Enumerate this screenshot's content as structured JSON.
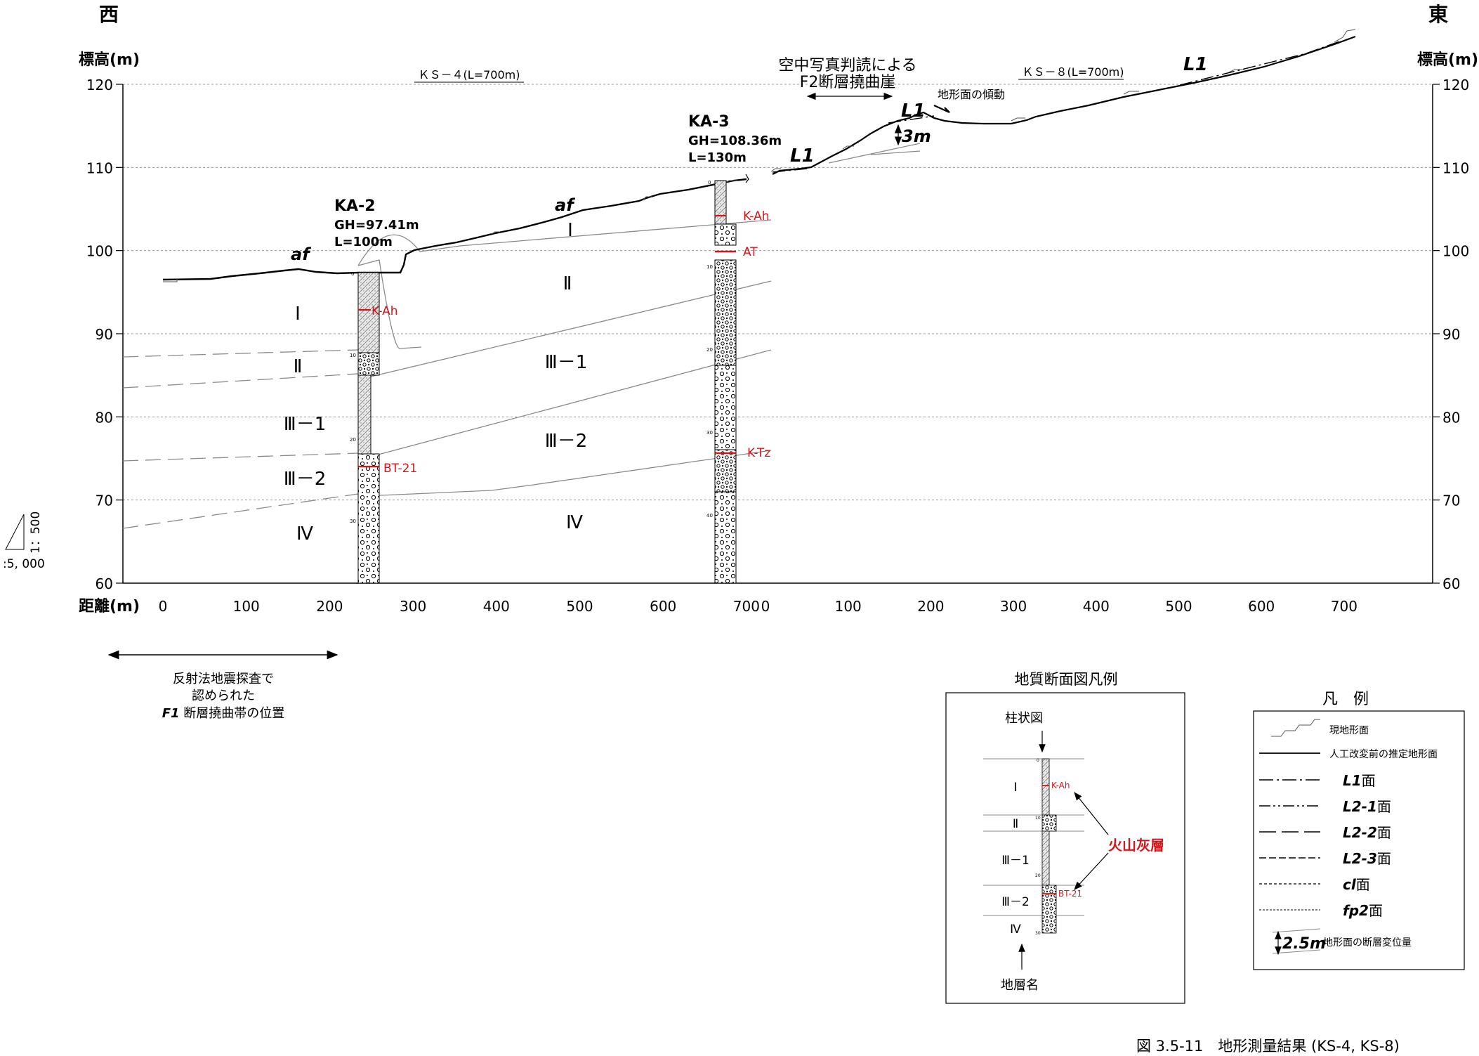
{
  "header": {
    "west": "西",
    "east": "東"
  },
  "axis": {
    "ylabel": "標高(m)",
    "xlabel": "距離(m)",
    "y_ticks": [
      120,
      110,
      100,
      90,
      80,
      70,
      60
    ],
    "x_ticks_ks4": [
      0,
      100,
      200,
      300,
      400,
      500,
      600,
      700
    ],
    "x_ticks_ks8": [
      0,
      100,
      200,
      300,
      400,
      500,
      600,
      700
    ],
    "ylim": [
      60,
      120
    ]
  },
  "lines": {
    "ks4": "ＫＳ－４(L=700m)",
    "ks8": "ＫＳ－８(L=700m)"
  },
  "boreholes": [
    {
      "id": "KA-2",
      "gh": "GH=97.41m",
      "len": "L=100m",
      "depth_ticks": [
        "0",
        "10",
        "20",
        "30"
      ],
      "ash": [
        {
          "name": "K-Ah"
        },
        {
          "name": "BT-21"
        }
      ]
    },
    {
      "id": "KA-3",
      "gh": "GH=108.36m",
      "len": "L=130m",
      "depth_ticks": [
        "0",
        "10",
        "20",
        "30",
        "40"
      ],
      "ash": [
        {
          "name": "K-Ah"
        },
        {
          "name": "AT"
        },
        {
          "name": "K-Tz"
        }
      ]
    }
  ],
  "units": [
    "Ⅰ",
    "Ⅱ",
    "Ⅲ－1",
    "Ⅲ－2",
    "Ⅳ"
  ],
  "surface_labels": {
    "af": "af",
    "l1": "L1"
  },
  "annotations": {
    "f2_title_1": "空中写真判読による",
    "f2_title_2": "F2断層撓曲崖",
    "tilt": "地形面の傾動",
    "offset": "3m",
    "f1_1": "反射法地震探査で",
    "f1_2": "認められた",
    "f1_3a": "F1",
    "f1_3b": " 断層撓曲帯の位置"
  },
  "scale": {
    "v": "1：500",
    "h": ":5, 000"
  },
  "geo_legend": {
    "title": "地質断面図凡例",
    "column_label": "柱状図",
    "unit_label": "地層名",
    "ash_label": "火山灰層",
    "units": [
      "Ⅰ",
      "Ⅱ",
      "Ⅲ－1",
      "Ⅲ－2",
      "Ⅳ"
    ],
    "ash": [
      "K-Ah",
      "BT-21"
    ],
    "depth_ticks": [
      "0",
      "10",
      "20",
      "30"
    ]
  },
  "legend": {
    "title": "凡　例",
    "items": [
      {
        "label": "現地形面"
      },
      {
        "label": "人工改変前の推定地形面"
      },
      {
        "label": "L1",
        "suffix": "面"
      },
      {
        "label": "L2-1",
        "suffix": "面"
      },
      {
        "label": "L2-2",
        "suffix": "面"
      },
      {
        "label": "L2-3",
        "suffix": "面"
      },
      {
        "label": "cl",
        "suffix": "面"
      },
      {
        "label": "fp2",
        "suffix": "面"
      }
    ],
    "offset_value": "2.5m",
    "offset_label": "地形面の断層変位量"
  },
  "caption": "図 3.5-11　地形測量結果 (KS-4, KS-8)",
  "colors": {
    "accent": "#d0171b",
    "line": "#000000",
    "grid": "#9a9a9a"
  }
}
